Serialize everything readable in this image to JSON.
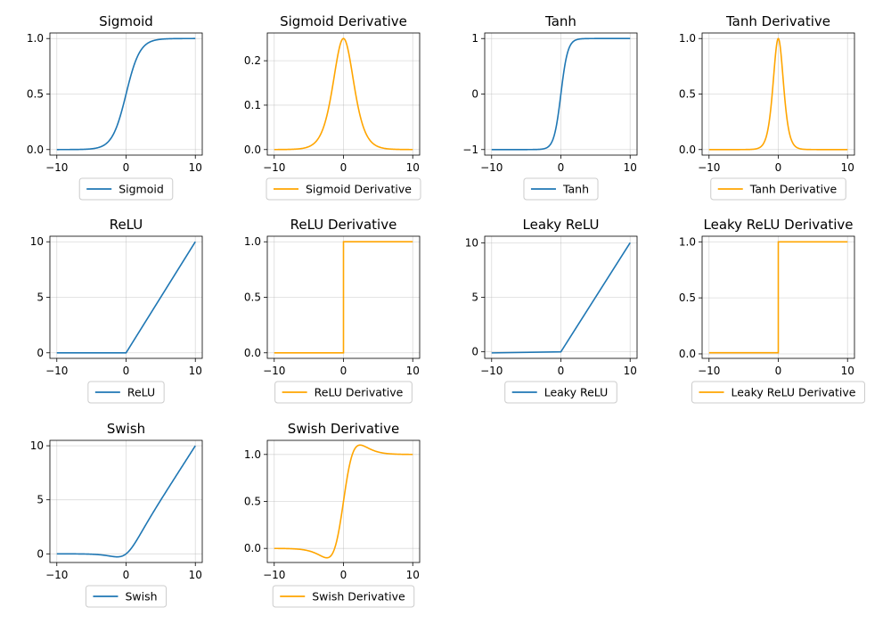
{
  "figure": {
    "blue": "#1f77b4",
    "orange": "#ffa500"
  },
  "chart_data": [
    {
      "type": "line",
      "title": "Sigmoid",
      "function": "sigmoid",
      "color": "#1f77b4",
      "xlim": [
        -10,
        10
      ],
      "ylim": [
        -0.05,
        1.05
      ],
      "xticks": [
        -10,
        0,
        10
      ],
      "xticklabels": [
        "−10",
        "0",
        "10"
      ],
      "yticks": [
        0,
        0.5,
        1
      ],
      "yticklabels": [
        "0.0",
        "0.5",
        "1.0"
      ],
      "grid": true,
      "legend": "lower-center",
      "series": [
        {
          "name": "Sigmoid",
          "x": [
            -10,
            -8,
            -6,
            -4,
            -3,
            -2,
            -1,
            0,
            1,
            2,
            3,
            4,
            6,
            8,
            10
          ],
          "y": [
            4.54e-05,
            0.000335,
            0.00247,
            0.018,
            0.0474,
            0.1192,
            0.2689,
            0.5,
            0.7311,
            0.8808,
            0.9526,
            0.982,
            0.9975,
            0.9997,
            1.0
          ]
        }
      ]
    },
    {
      "type": "line",
      "title": "Sigmoid Derivative",
      "function": "sigmoid_derivative",
      "color": "#ffa500",
      "xlim": [
        -10,
        10
      ],
      "ylim": [
        -0.0125,
        0.2625
      ],
      "xticks": [
        -10,
        0,
        10
      ],
      "xticklabels": [
        "−10",
        "0",
        "10"
      ],
      "yticks": [
        0,
        0.1,
        0.2
      ],
      "yticklabels": [
        "0.0",
        "0.1",
        "0.2"
      ],
      "grid": true,
      "legend": "lower-center",
      "series": [
        {
          "name": "Sigmoid Derivative",
          "x": [
            -10,
            -8,
            -6,
            -4,
            -3,
            -2,
            -1,
            0,
            1,
            2,
            3,
            4,
            6,
            8,
            10
          ],
          "y": [
            4.54e-05,
            0.000335,
            0.00247,
            0.0177,
            0.0452,
            0.105,
            0.1966,
            0.25,
            0.1966,
            0.105,
            0.0452,
            0.0177,
            0.00247,
            0.000335,
            4.54e-05
          ]
        }
      ]
    },
    {
      "type": "line",
      "title": "Tanh",
      "function": "tanh",
      "color": "#1f77b4",
      "xlim": [
        -10,
        10
      ],
      "ylim": [
        -1.1,
        1.1
      ],
      "xticks": [
        -10,
        0,
        10
      ],
      "xticklabels": [
        "−10",
        "0",
        "10"
      ],
      "yticks": [
        -1,
        0,
        1
      ],
      "yticklabels": [
        "−1",
        "0",
        "1"
      ],
      "grid": true,
      "legend": "lower-center",
      "series": [
        {
          "name": "Tanh",
          "x": [
            -10,
            -4,
            -3,
            -2,
            -1,
            -0.5,
            0,
            0.5,
            1,
            2,
            3,
            4,
            10
          ],
          "y": [
            -1.0,
            -0.9993,
            -0.9951,
            -0.964,
            -0.7616,
            -0.4621,
            0,
            0.4621,
            0.7616,
            0.964,
            0.9951,
            0.9993,
            1.0
          ]
        }
      ]
    },
    {
      "type": "line",
      "title": "Tanh Derivative",
      "function": "tanh_derivative",
      "color": "#ffa500",
      "xlim": [
        -10,
        10
      ],
      "ylim": [
        -0.05,
        1.05
      ],
      "xticks": [
        -10,
        0,
        10
      ],
      "xticklabels": [
        "−10",
        "0",
        "10"
      ],
      "yticks": [
        0,
        0.5,
        1
      ],
      "yticklabels": [
        "0.0",
        "0.5",
        "1.0"
      ],
      "grid": true,
      "legend": "lower-center",
      "series": [
        {
          "name": "Tanh Derivative",
          "x": [
            -10,
            -4,
            -3,
            -2,
            -1,
            -0.5,
            0,
            0.5,
            1,
            2,
            3,
            4,
            10
          ],
          "y": [
            0,
            0.0013,
            0.0099,
            0.0707,
            0.42,
            0.7864,
            1.0,
            0.7864,
            0.42,
            0.0707,
            0.0099,
            0.0013,
            0
          ]
        }
      ]
    },
    {
      "type": "line",
      "title": "ReLU",
      "function": "relu",
      "color": "#1f77b4",
      "xlim": [
        -10,
        10
      ],
      "ylim": [
        -0.5,
        10.5
      ],
      "xticks": [
        -10,
        0,
        10
      ],
      "xticklabels": [
        "−10",
        "0",
        "10"
      ],
      "yticks": [
        0,
        5,
        10
      ],
      "yticklabels": [
        "0",
        "5",
        "10"
      ],
      "grid": true,
      "legend": "lower-center",
      "series": [
        {
          "name": "ReLU",
          "x": [
            -10,
            0,
            10
          ],
          "y": [
            0,
            0,
            10
          ]
        }
      ]
    },
    {
      "type": "line",
      "title": "ReLU Derivative",
      "function": "relu_derivative",
      "color": "#ffa500",
      "xlim": [
        -10,
        10
      ],
      "ylim": [
        -0.05,
        1.05
      ],
      "xticks": [
        -10,
        0,
        10
      ],
      "xticklabels": [
        "−10",
        "0",
        "10"
      ],
      "yticks": [
        0,
        0.5,
        1
      ],
      "yticklabels": [
        "0.0",
        "0.5",
        "1.0"
      ],
      "grid": true,
      "legend": "lower-center",
      "series": [
        {
          "name": "ReLU Derivative",
          "x": [
            -10,
            0,
            0,
            10
          ],
          "y": [
            0,
            0,
            1,
            1
          ]
        }
      ]
    },
    {
      "type": "line",
      "title": "Leaky ReLU",
      "function": "leaky_relu",
      "color": "#1f77b4",
      "xlim": [
        -10,
        10
      ],
      "ylim": [
        -0.6,
        10.6
      ],
      "xticks": [
        -10,
        0,
        10
      ],
      "xticklabels": [
        "−10",
        "0",
        "10"
      ],
      "yticks": [
        0,
        5,
        10
      ],
      "yticklabels": [
        "0",
        "5",
        "10"
      ],
      "grid": true,
      "legend": "lower-center",
      "series": [
        {
          "name": "Leaky ReLU",
          "x": [
            -10,
            0,
            10
          ],
          "y": [
            -0.1,
            0,
            10
          ]
        }
      ]
    },
    {
      "type": "line",
      "title": "Leaky ReLU Derivative",
      "function": "leaky_relu_derivative",
      "color": "#ffa500",
      "xlim": [
        -10,
        10
      ],
      "ylim": [
        -0.04,
        1.05
      ],
      "xticks": [
        -10,
        0,
        10
      ],
      "xticklabels": [
        "−10",
        "0",
        "10"
      ],
      "yticks": [
        0,
        0.5,
        1
      ],
      "yticklabels": [
        "0.0",
        "0.5",
        "1.0"
      ],
      "grid": true,
      "legend": "lower-center",
      "series": [
        {
          "name": "Leaky ReLU Derivative",
          "x": [
            -10,
            0,
            0,
            10
          ],
          "y": [
            0.01,
            0.01,
            1,
            1
          ]
        }
      ]
    },
    {
      "type": "line",
      "title": "Swish",
      "function": "swish",
      "color": "#1f77b4",
      "xlim": [
        -10,
        10
      ],
      "ylim": [
        -0.8,
        10.5
      ],
      "xticks": [
        -10,
        0,
        10
      ],
      "xticklabels": [
        "−10",
        "0",
        "10"
      ],
      "yticks": [
        0,
        5,
        10
      ],
      "yticklabels": [
        "0",
        "5",
        "10"
      ],
      "grid": true,
      "legend": "lower-center",
      "series": [
        {
          "name": "Swish",
          "x": [
            -10,
            -8,
            -6,
            -4,
            -3,
            -2,
            -1.28,
            -1,
            0,
            1,
            2,
            3,
            4,
            6,
            8,
            10
          ],
          "y": [
            -0.0005,
            -0.0027,
            -0.0148,
            -0.0719,
            -0.1423,
            -0.2384,
            -0.2785,
            -0.2689,
            0,
            0.7311,
            1.7616,
            2.8577,
            3.9281,
            5.9852,
            7.9973,
            9.9995
          ]
        }
      ]
    },
    {
      "type": "line",
      "title": "Swish Derivative",
      "function": "swish_derivative",
      "color": "#ffa500",
      "xlim": [
        -10,
        10
      ],
      "ylim": [
        -0.15,
        1.15
      ],
      "xticks": [
        -10,
        0,
        10
      ],
      "xticklabels": [
        "−10",
        "0",
        "10"
      ],
      "yticks": [
        0,
        0.5,
        1
      ],
      "yticklabels": [
        "0.0",
        "0.5",
        "1.0"
      ],
      "grid": true,
      "legend": "lower-center",
      "series": [
        {
          "name": "Swish Derivative",
          "x": [
            -10,
            -8,
            -6,
            -4,
            -3,
            -2.4,
            -2,
            -1,
            0,
            1,
            2,
            2.4,
            3,
            4,
            6,
            8,
            10
          ],
          "y": [
            -0.0004,
            -0.0024,
            -0.0123,
            -0.0529,
            -0.0881,
            -0.0998,
            -0.0908,
            0.0723,
            0.5,
            0.9277,
            1.0908,
            1.0998,
            1.0881,
            1.0529,
            1.0123,
            1.0024,
            1.0004
          ]
        }
      ]
    }
  ]
}
